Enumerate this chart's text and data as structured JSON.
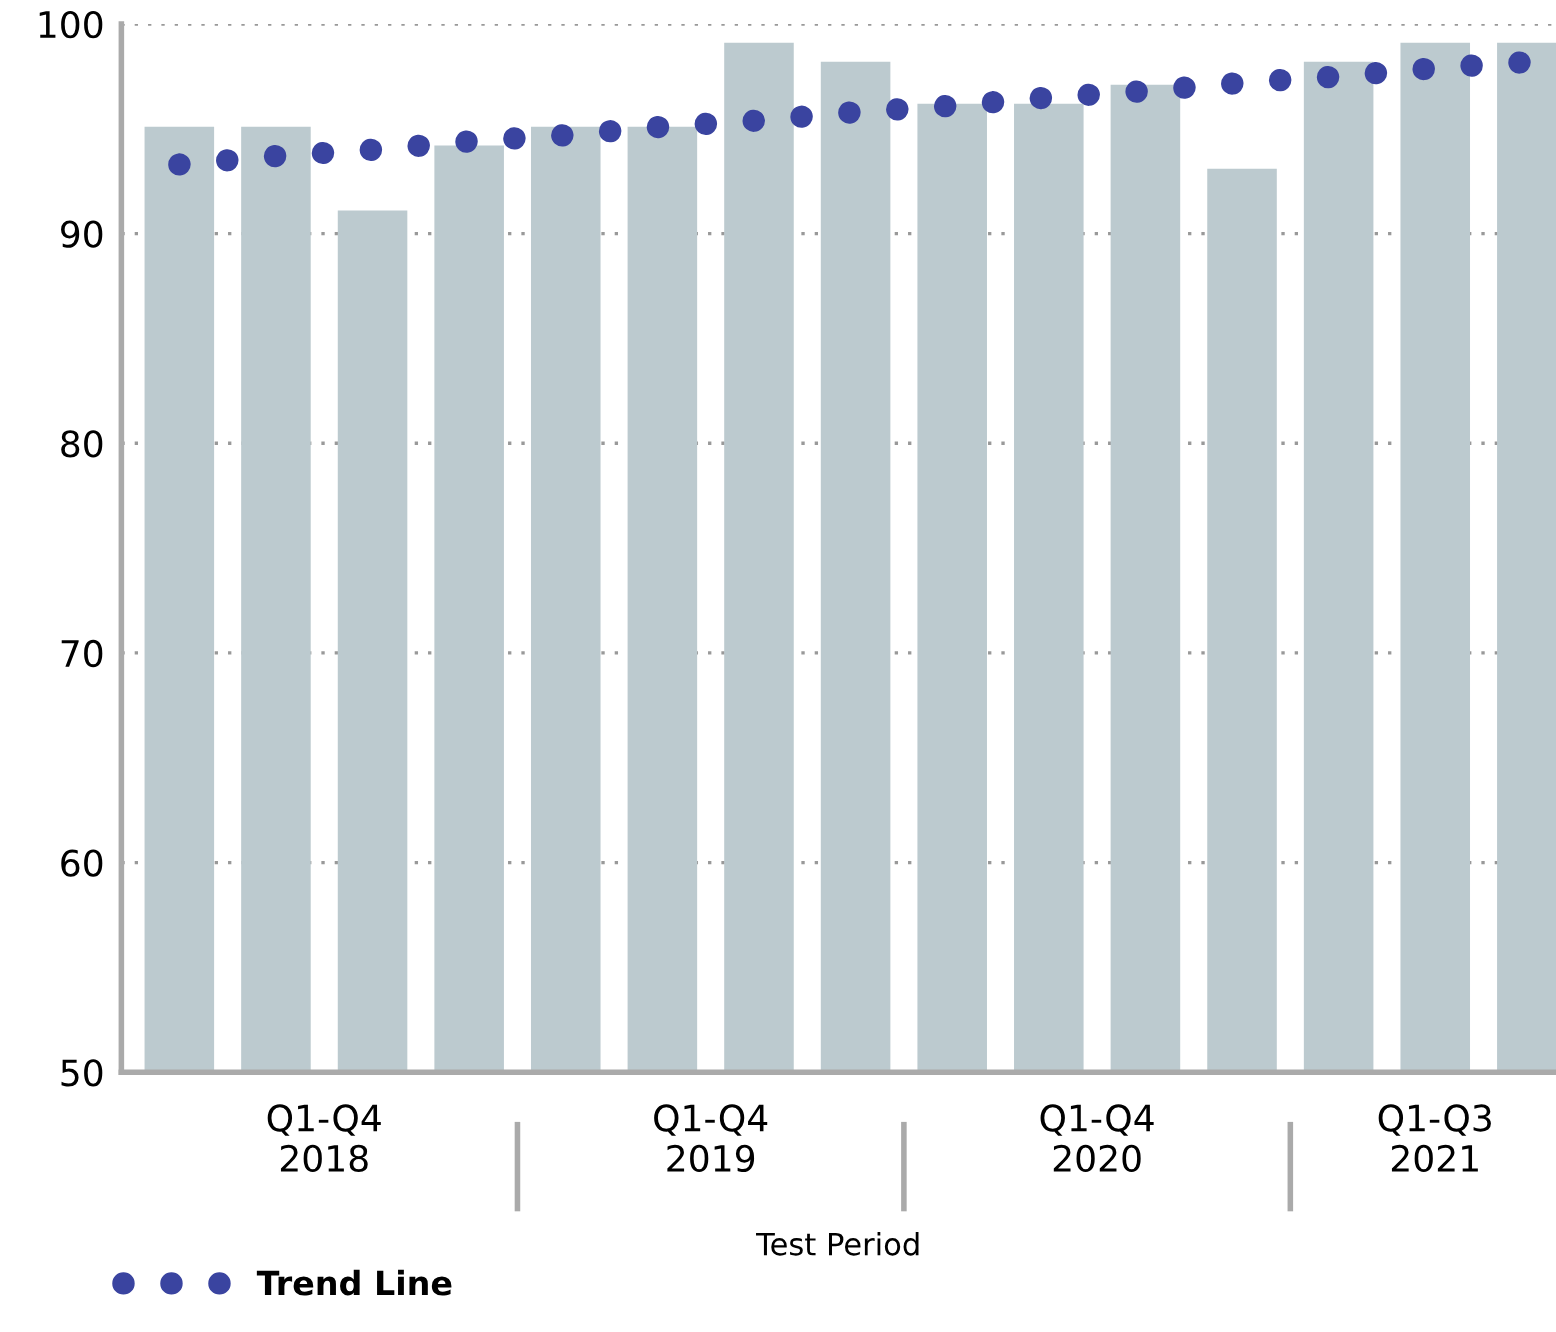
{
  "chart_data": {
    "type": "bar",
    "xlabel": "Test Period",
    "categories": [
      null,
      null,
      null,
      null,
      null,
      null,
      null,
      null,
      null,
      null,
      null,
      null,
      null,
      null,
      null
    ],
    "series": [
      {
        "color": "#bccacf",
        "values": [
          95.1,
          95.1,
          91.1,
          94.2,
          95.1,
          95.1,
          99.1,
          98.2,
          96.2,
          96.2,
          97.1,
          93.1,
          98.2,
          99.1,
          99.1
        ]
      },
      {
        "type": "line",
        "name": "Trend Line",
        "color": "#3a44a0",
        "values": [
          93.3,
          93.7,
          94.0,
          94.4,
          94.7,
          95.1,
          95.4,
          95.8,
          96.1,
          96.5,
          96.8,
          97.2,
          97.5,
          97.9,
          98.2
        ],
        "line_style": "dotted"
      }
    ],
    "annotations": [
      "Q1-Q4\n2018",
      "Q1-Q4\n2019",
      "Q1-Q4\n2020",
      "Q1-Q3\n2021"
    ],
    "ylim": [
      50,
      100
    ],
    "yticks": [
      50,
      60,
      70,
      80,
      90,
      100
    ],
    "grid": "y",
    "legend": "bottom left"
  }
}
